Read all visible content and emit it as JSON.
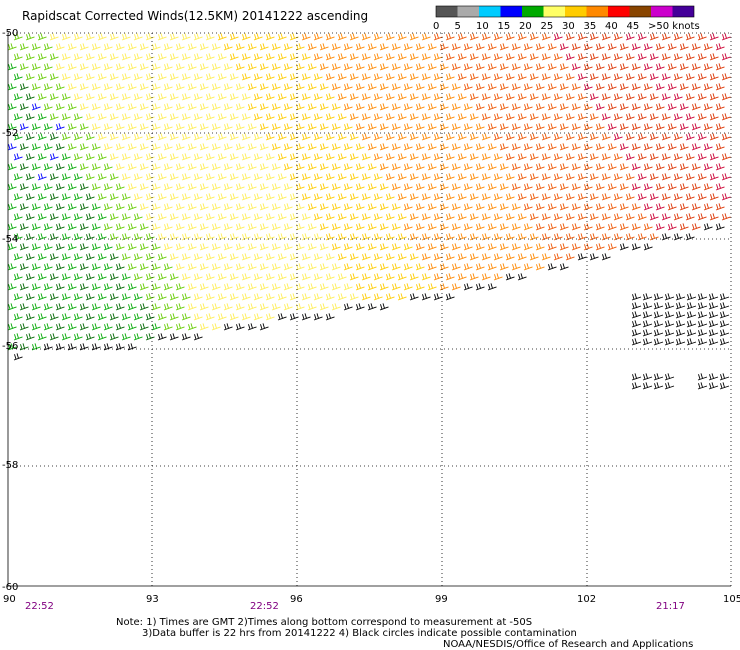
{
  "title": "Rapidscat Corrected Winds(12.5KM) 20141222 ascending",
  "colorbar": {
    "labels": [
      "0",
      "5",
      "10",
      "15",
      "20",
      "25",
      "30",
      "35",
      "40",
      "45",
      ">50 knots"
    ],
    "colors": [
      "#555555",
      "#aaaaaa",
      "#00ccff",
      "#0000ff",
      "#00aa00",
      "#ffff66",
      "#ffcc00",
      "#ff8800",
      "#ff0000",
      "#884400",
      "#cc00cc",
      "#440099"
    ]
  },
  "lat_labels": [
    "-50",
    "-52",
    "-54",
    "-56",
    "-58",
    "-60"
  ],
  "lon_labels": [
    "90",
    "93",
    "96",
    "99",
    "102",
    "105"
  ],
  "times": [
    "22:52",
    "22:52",
    "21:17"
  ],
  "notes": [
    "Note: 1) Times are GMT 2)Times along bottom correspond to measurement at -50S",
    "3)Data buffer is 22 hrs from 20141222 4) Black circles indicate possible contamination",
    "NOAA/NESDIS/Office of Research and Applications"
  ]
}
